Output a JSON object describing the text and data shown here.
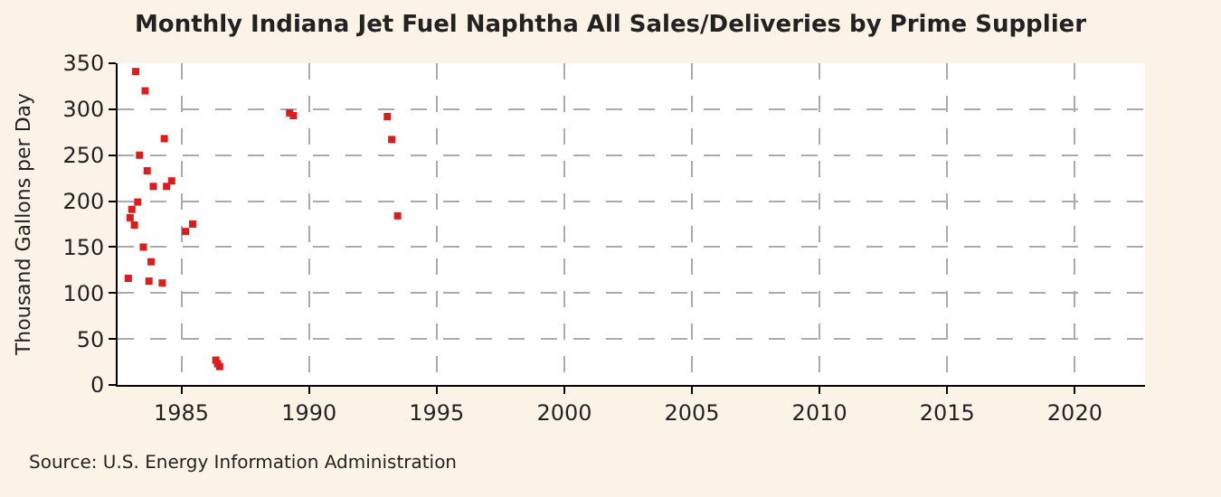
{
  "chart_data": {
    "type": "scatter",
    "title": "Monthly Indiana Jet Fuel Naphtha All Sales/Deliveries by Prime Supplier",
    "ylabel": "Thousand Gallons per Day",
    "x": [
      1982.92,
      1982.99,
      1983.06,
      1983.16,
      1983.21,
      1983.29,
      1983.36,
      1983.51,
      1983.58,
      1983.66,
      1983.73,
      1983.81,
      1983.9,
      1984.25,
      1984.33,
      1984.42,
      1984.62,
      1985.16,
      1985.44,
      1986.35,
      1986.42,
      1986.5,
      1989.24,
      1989.39,
      1993.07,
      1993.24,
      1993.47
    ],
    "series": [
      {
        "color": "#dd1c1c",
        "values": [
          116,
          182,
          191,
          174,
          341,
          199,
          250,
          150,
          320,
          233,
          113,
          134,
          216,
          111,
          268,
          216,
          222,
          167,
          175,
          27,
          23,
          20,
          296,
          293,
          292,
          267,
          184
        ]
      }
    ],
    "xlim": [
      1982.5,
      2022.75
    ],
    "xticks": [
      1985,
      1990,
      1995,
      2000,
      2005,
      2010,
      2015,
      2020
    ],
    "ylim": [
      0,
      350
    ],
    "yticks": [
      0,
      50,
      100,
      150,
      200,
      250,
      300,
      350
    ],
    "grid": true,
    "marker": "square",
    "annotations": [
      "Source: U.S. Energy Information Administration"
    ]
  }
}
